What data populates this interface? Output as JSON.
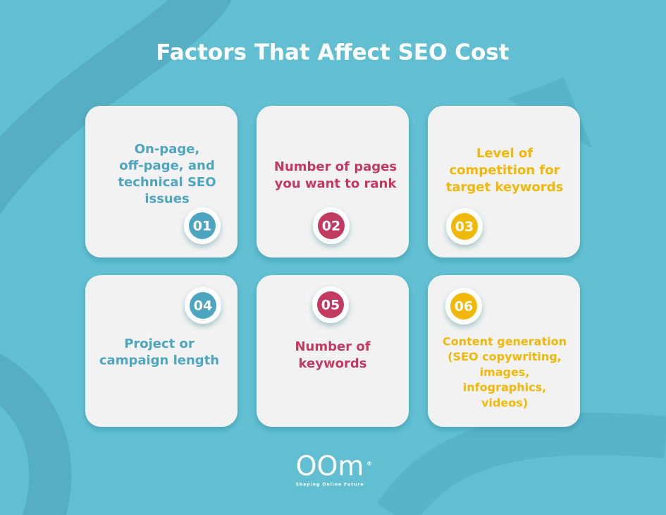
{
  "header": {
    "title": "Factors That Affect SEO Cost"
  },
  "cards": [
    {
      "number": "01",
      "lines": [
        "On-page,",
        "off-page, and",
        "technical SEO",
        "issues"
      ]
    },
    {
      "number": "02",
      "lines": [
        "Number of pages",
        "you want to rank"
      ]
    },
    {
      "number": "03",
      "lines": [
        "Level of",
        "competition for",
        "target keywords"
      ]
    },
    {
      "number": "04",
      "lines": [
        "Project or",
        "campaign length"
      ]
    },
    {
      "number": "05",
      "lines": [
        "Number of",
        "keywords"
      ]
    },
    {
      "number": "06",
      "lines": [
        "Content generation",
        "(SEO copywriting,",
        "images,",
        "infographics,",
        "videos)"
      ]
    }
  ],
  "logo": {
    "name": "OOm",
    "mark": "®",
    "tagline": "Shaping Online Future"
  }
}
